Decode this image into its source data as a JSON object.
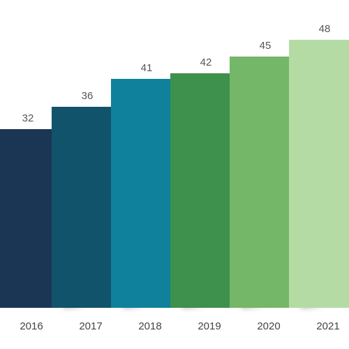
{
  "chart_data": {
    "type": "bar",
    "categories": [
      "2016",
      "2017",
      "2018",
      "2019",
      "2020",
      "2021"
    ],
    "values": [
      32,
      36,
      41,
      42,
      45,
      48
    ],
    "colors": [
      "#1b3554",
      "#11536a",
      "#0f819c",
      "#3d914c",
      "#74b768",
      "#b5dba4"
    ],
    "side_colors": [
      "#0f2440",
      "#0a3d52",
      "#0a6680",
      "#2d7a3c",
      "#5a9c50",
      "#93c585"
    ],
    "ylim": [
      0,
      50
    ]
  }
}
